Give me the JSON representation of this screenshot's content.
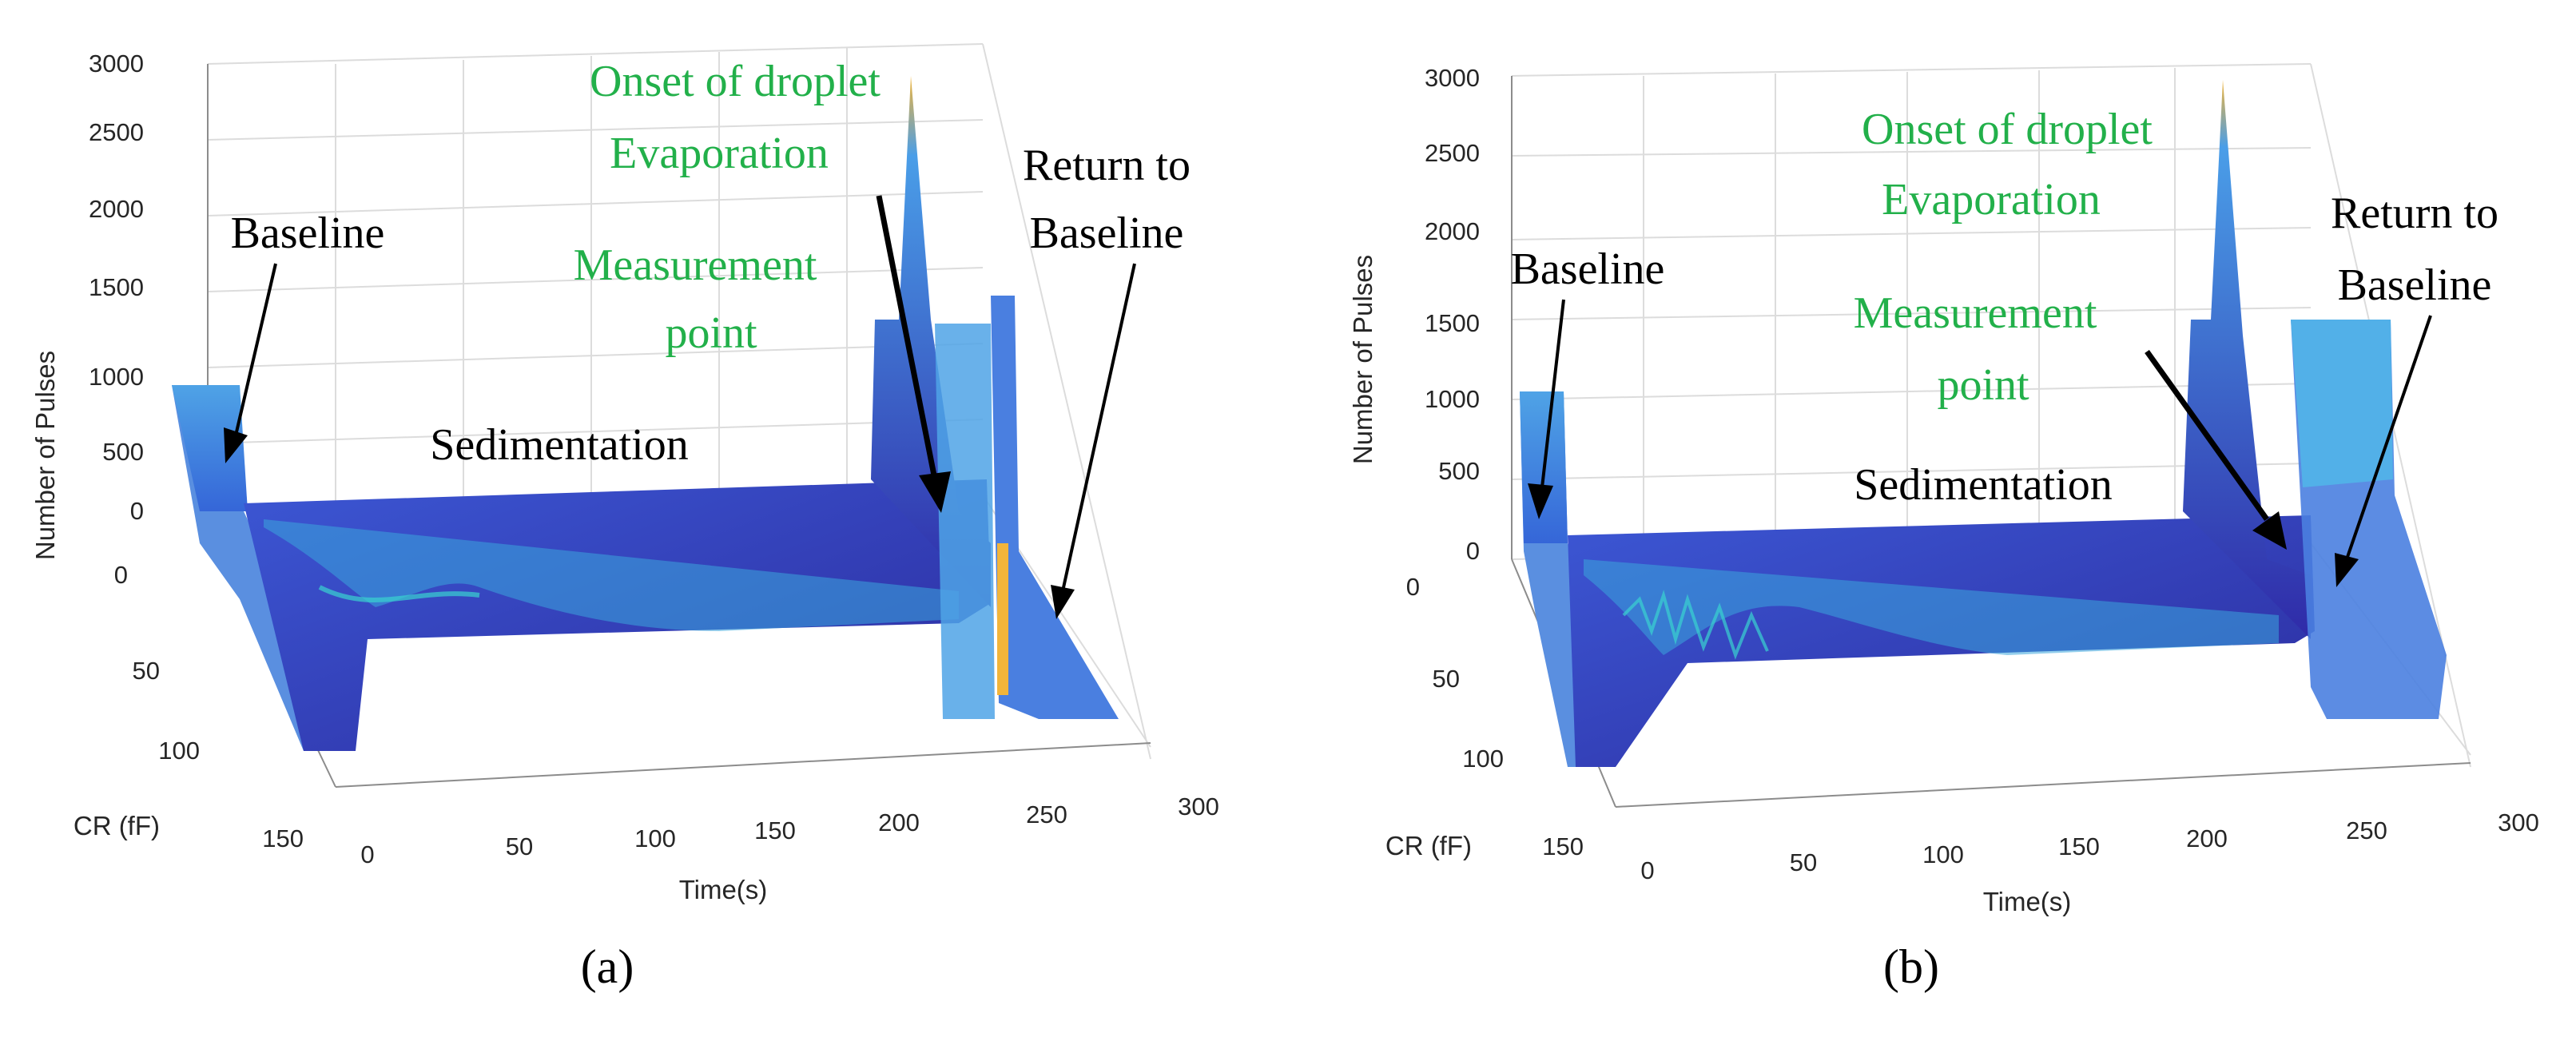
{
  "chart_data": [
    {
      "panel_label": "(a)",
      "type": "surface3d",
      "xlabel": "Time(s)",
      "ylabel": "CR (fF)",
      "zlabel": "Number of Pulses",
      "xlim": [
        0,
        300
      ],
      "ylim": [
        0,
        150
      ],
      "zlim": [
        0,
        3000
      ],
      "xticks": [
        "0",
        "50",
        "100",
        "150",
        "200",
        "250",
        "300"
      ],
      "yticks": [
        "0",
        "50",
        "100",
        "150"
      ],
      "zticks": [
        "0",
        "500",
        "1000",
        "1500",
        "2000",
        "2500",
        "3000"
      ],
      "grid": true,
      "profile": {
        "time": [
          0,
          8,
          15,
          25,
          40,
          55,
          70,
          90,
          110,
          130,
          150,
          170,
          190,
          210,
          230,
          250,
          265,
          270,
          280,
          290,
          300
        ],
        "cr": [
          0,
          0,
          60,
          68,
          52,
          35,
          33,
          40,
          48,
          53,
          55,
          55,
          55,
          55,
          55,
          55,
          55,
          0,
          0,
          0,
          0
        ],
        "pulses": [
          1000,
          1000,
          500,
          450,
          380,
          300,
          260,
          250,
          240,
          230,
          230,
          230,
          230,
          230,
          230,
          230,
          2900,
          1700,
          1400,
          1000,
          1000
        ]
      },
      "annotations": [
        {
          "text": "Baseline",
          "color": "#000000"
        },
        {
          "text": "Sedimentation",
          "color": "#000000"
        },
        {
          "text": "Onset of droplet",
          "color": "#22b04a"
        },
        {
          "text": "Evaporation",
          "color": "#22b04a"
        },
        {
          "text": "Measurement",
          "color": "#22b04a"
        },
        {
          "text": "point",
          "color": "#22b04a"
        },
        {
          "text": "Return to",
          "color": "#000000"
        },
        {
          "text": "Baseline",
          "color": "#000000"
        }
      ]
    },
    {
      "panel_label": "(b)",
      "type": "surface3d",
      "xlabel": "Time(s)",
      "ylabel": "CR (fF)",
      "zlabel": "Number of Pulses",
      "xlim": [
        0,
        300
      ],
      "ylim": [
        0,
        150
      ],
      "zlim": [
        0,
        3000
      ],
      "xticks": [
        "0",
        "50",
        "100",
        "150",
        "200",
        "250",
        "300"
      ],
      "yticks": [
        "0",
        "50",
        "100",
        "150"
      ],
      "zticks": [
        "0",
        "500",
        "1000",
        "1500",
        "2000",
        "2500",
        "3000"
      ],
      "grid": true,
      "profile": {
        "time": [
          0,
          8,
          15,
          25,
          40,
          55,
          70,
          90,
          110,
          130,
          150,
          170,
          190,
          210,
          230,
          250,
          260,
          265,
          275,
          290,
          300
        ],
        "cr": [
          0,
          0,
          70,
          55,
          40,
          30,
          38,
          48,
          55,
          60,
          62,
          62,
          62,
          62,
          62,
          62,
          0,
          0,
          0,
          0,
          0
        ],
        "pulses": [
          1000,
          1000,
          450,
          400,
          330,
          280,
          250,
          240,
          230,
          230,
          230,
          230,
          230,
          230,
          230,
          230,
          2900,
          1500,
          1200,
          1000,
          1000
        ]
      },
      "annotations": [
        {
          "text": "Baseline",
          "color": "#000000"
        },
        {
          "text": "Sedimentation",
          "color": "#000000"
        },
        {
          "text": "Onset of droplet",
          "color": "#22b04a"
        },
        {
          "text": "Evaporation",
          "color": "#22b04a"
        },
        {
          "text": "Measurement",
          "color": "#22b04a"
        },
        {
          "text": "point",
          "color": "#22b04a"
        },
        {
          "text": "Return to",
          "color": "#000000"
        },
        {
          "text": "Baseline",
          "color": "#000000"
        }
      ]
    }
  ],
  "colors": {
    "surface_dark": "#2f2aa8",
    "surface_mid": "#3b5bd9",
    "surface_light": "#4a9ee8",
    "surface_cyan": "#35c3d8",
    "peak_yellow": "#f2b53a",
    "annotation_green": "#22b04a"
  }
}
